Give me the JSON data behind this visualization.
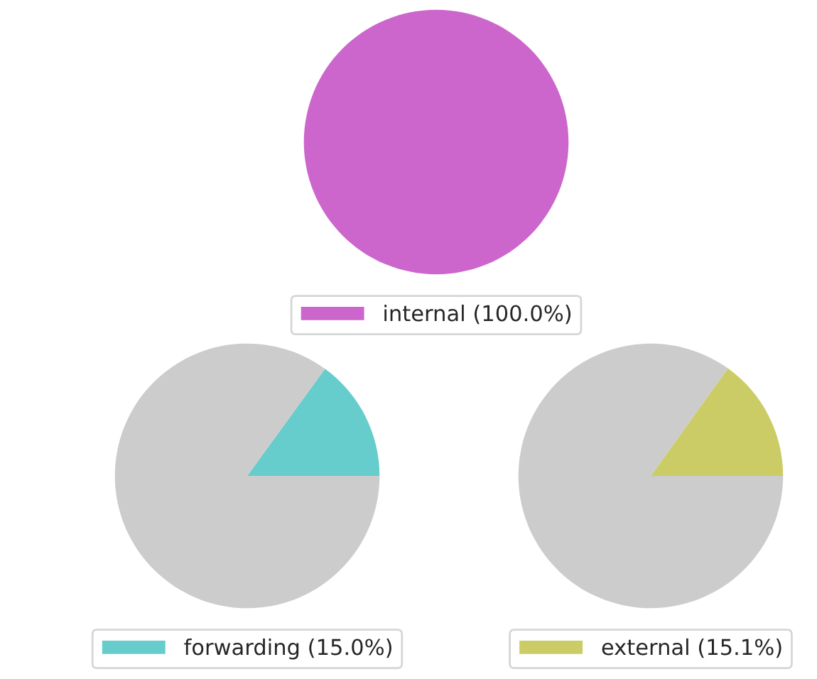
{
  "chart_data": [
    {
      "type": "pie",
      "categories": [
        "internal (100.0%)"
      ],
      "values": [
        100
      ],
      "colors": [
        "#cc66cc"
      ],
      "legend": "bottom"
    },
    {
      "type": "pie",
      "categories": [
        "forwarding (15.0%)",
        null
      ],
      "values": [
        15.0,
        85.0
      ],
      "colors": [
        "#66cccc",
        "#cccccc"
      ],
      "legend": "bottom"
    },
    {
      "type": "pie",
      "categories": [
        "external (15.1%)",
        null
      ],
      "values": [
        15.1,
        84.9
      ],
      "colors": [
        "#cccc66",
        "#cccccc"
      ],
      "legend": "bottom"
    }
  ]
}
